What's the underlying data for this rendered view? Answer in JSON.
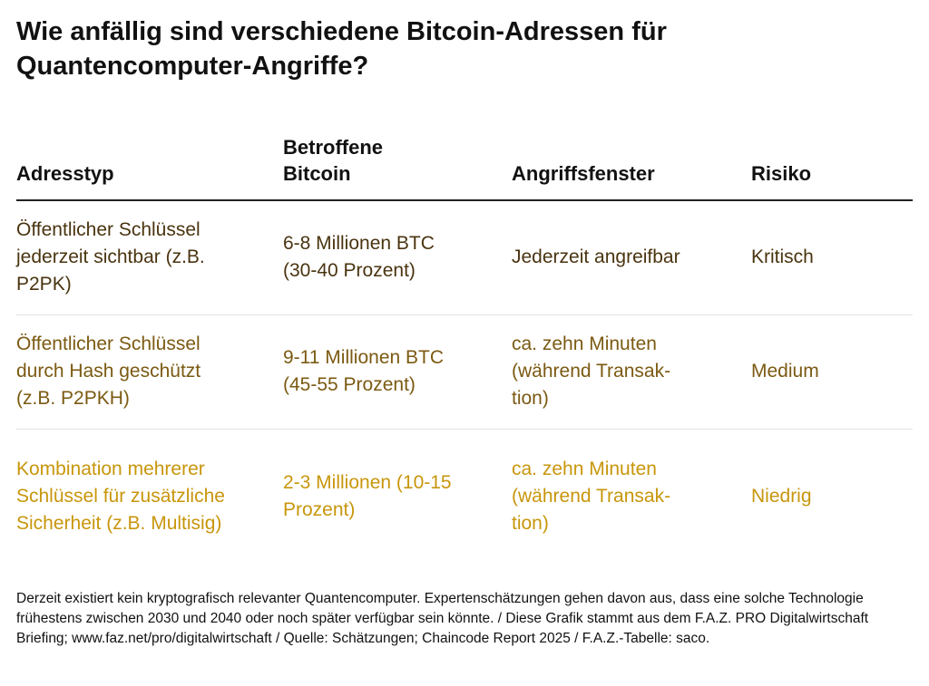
{
  "title": "Wie anfällig sind verschiedene Bitcoin-Adressen für Quantencomputer-Angriffe?",
  "headers": [
    "Adresstyp",
    "Betroffene Bitcoin",
    "Angriffsfenster",
    "Risiko"
  ],
  "rows": [
    {
      "color": "#4a3410",
      "cells": [
        "Öffentlicher Schlüssel jederzeit sichtbar (z.B. P2PK)",
        "6-8 Millionen BTC (30-40 Prozent)",
        "Jederzeit angreifbar",
        "Kritisch"
      ]
    },
    {
      "color": "#7b5a12",
      "cells": [
        "Öffentlicher Schlüssel durch Hash geschützt (z.B. P2PKH)",
        "9-11 Millionen BTC (45-55 Prozent)",
        "ca. zehn Minuten (während Transak-tion)",
        "Medium"
      ]
    },
    {
      "color": "#c8960c",
      "cells": [
        "Kombination mehrerer Schlüssel für zusätzliche Sicherheit (z.B. Multisig)",
        "2-3 Millionen (10-15 Prozent)",
        "ca. zehn Minuten (während Transak-tion)",
        "Niedrig"
      ]
    }
  ],
  "footnote": "Derzeit existiert kein kryptografisch relevanter Quantencomputer. Expertenschätzungen gehen davon aus, dass eine solche Technologie frühestens zwischen 2030 und 2040 oder noch später verfügbar sein könnte. / Diese Grafik stammt aus dem F.A.Z. PRO Digitalwirtschaft Briefing; www.faz.net/pro/digitalwirtschaft  / Quelle: Schätzungen; Chaincode Report 2025  / F.A.Z.-Tabelle: saco."
}
